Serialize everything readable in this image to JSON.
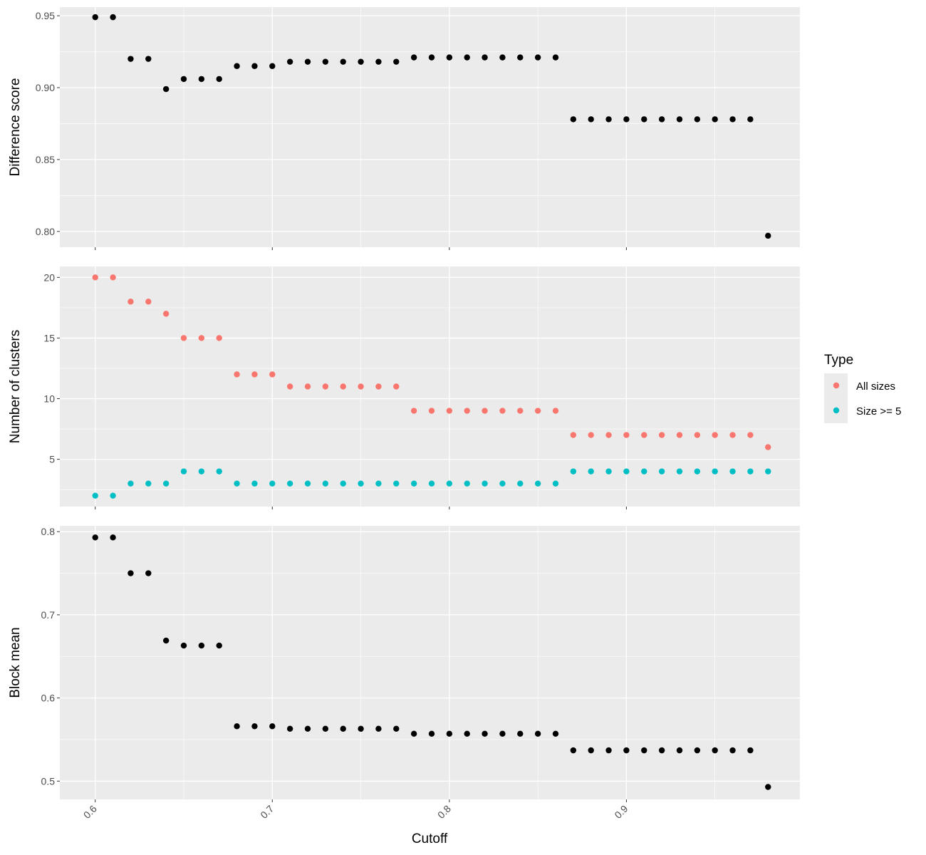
{
  "chart_data": {
    "type": "scatter",
    "xlabel": "Cutoff",
    "x_ticks": [
      0.6,
      0.7,
      0.8,
      0.9
    ],
    "x_tick_labels": [
      "0.6",
      "0.7",
      "0.8",
      "0.9"
    ],
    "xlim": [
      0.58,
      0.998
    ],
    "grid": true,
    "legend_placement": "right",
    "colors": {
      "black": "#000000",
      "all_sizes": "#F8766D",
      "size_ge_5": "#00BFC4",
      "panel_bg": "#EBEBEB",
      "grid": "#FFFFFF"
    },
    "panels": [
      {
        "ylabel": "Difference score",
        "ylim": [
          0.789,
          0.956
        ],
        "y_ticks": [
          0.8,
          0.85,
          0.9,
          0.95
        ],
        "y_tick_labels": [
          "0.80",
          "0.85",
          "0.90",
          "0.95"
        ],
        "series": [
          {
            "color": "#000000",
            "x": [
              0.6,
              0.61,
              0.62,
              0.63,
              0.64,
              0.65,
              0.66,
              0.67,
              0.68,
              0.69,
              0.7,
              0.71,
              0.72,
              0.73,
              0.74,
              0.75,
              0.76,
              0.77,
              0.78,
              0.79,
              0.8,
              0.81,
              0.82,
              0.83,
              0.84,
              0.85,
              0.86,
              0.87,
              0.88,
              0.89,
              0.9,
              0.91,
              0.92,
              0.93,
              0.94,
              0.95,
              0.96,
              0.97,
              0.98
            ],
            "y": [
              0.949,
              0.949,
              0.92,
              0.92,
              0.899,
              0.906,
              0.906,
              0.906,
              0.915,
              0.915,
              0.915,
              0.918,
              0.918,
              0.918,
              0.918,
              0.918,
              0.918,
              0.918,
              0.921,
              0.921,
              0.921,
              0.921,
              0.921,
              0.921,
              0.921,
              0.921,
              0.921,
              0.878,
              0.878,
              0.878,
              0.878,
              0.878,
              0.878,
              0.878,
              0.878,
              0.878,
              0.878,
              0.878,
              0.797
            ]
          }
        ]
      },
      {
        "ylabel": "Number of clusters",
        "ylim": [
          1.1,
          20.9
        ],
        "y_ticks": [
          5,
          10,
          15,
          20
        ],
        "y_tick_labels": [
          "5",
          "10",
          "15",
          "20"
        ],
        "series": [
          {
            "name": "All sizes",
            "color": "#F8766D",
            "x": [
              0.6,
              0.61,
              0.62,
              0.63,
              0.64,
              0.65,
              0.66,
              0.67,
              0.68,
              0.69,
              0.7,
              0.71,
              0.72,
              0.73,
              0.74,
              0.75,
              0.76,
              0.77,
              0.78,
              0.79,
              0.8,
              0.81,
              0.82,
              0.83,
              0.84,
              0.85,
              0.86,
              0.87,
              0.88,
              0.89,
              0.9,
              0.91,
              0.92,
              0.93,
              0.94,
              0.95,
              0.96,
              0.97,
              0.98
            ],
            "y": [
              20,
              20,
              18,
              18,
              17,
              15,
              15,
              15,
              12,
              12,
              12,
              11,
              11,
              11,
              11,
              11,
              11,
              11,
              9,
              9,
              9,
              9,
              9,
              9,
              9,
              9,
              9,
              7,
              7,
              7,
              7,
              7,
              7,
              7,
              7,
              7,
              7,
              7,
              6
            ]
          },
          {
            "name": "Size >= 5",
            "color": "#00BFC4",
            "x": [
              0.6,
              0.61,
              0.62,
              0.63,
              0.64,
              0.65,
              0.66,
              0.67,
              0.68,
              0.69,
              0.7,
              0.71,
              0.72,
              0.73,
              0.74,
              0.75,
              0.76,
              0.77,
              0.78,
              0.79,
              0.8,
              0.81,
              0.82,
              0.83,
              0.84,
              0.85,
              0.86,
              0.87,
              0.88,
              0.89,
              0.9,
              0.91,
              0.92,
              0.93,
              0.94,
              0.95,
              0.96,
              0.97,
              0.98
            ],
            "y": [
              2,
              2,
              3,
              3,
              3,
              4,
              4,
              4,
              3,
              3,
              3,
              3,
              3,
              3,
              3,
              3,
              3,
              3,
              3,
              3,
              3,
              3,
              3,
              3,
              3,
              3,
              3,
              4,
              4,
              4,
              4,
              4,
              4,
              4,
              4,
              4,
              4,
              4,
              4
            ]
          }
        ]
      },
      {
        "ylabel": "Block mean",
        "ylim": [
          0.478,
          0.807
        ],
        "y_ticks": [
          0.5,
          0.6,
          0.7,
          0.8
        ],
        "y_tick_labels": [
          "0.5",
          "0.6",
          "0.7",
          "0.8"
        ],
        "series": [
          {
            "color": "#000000",
            "x": [
              0.6,
              0.61,
              0.62,
              0.63,
              0.64,
              0.65,
              0.66,
              0.67,
              0.68,
              0.69,
              0.7,
              0.71,
              0.72,
              0.73,
              0.74,
              0.75,
              0.76,
              0.77,
              0.78,
              0.79,
              0.8,
              0.81,
              0.82,
              0.83,
              0.84,
              0.85,
              0.86,
              0.87,
              0.88,
              0.89,
              0.9,
              0.91,
              0.92,
              0.93,
              0.94,
              0.95,
              0.96,
              0.97,
              0.98
            ],
            "y": [
              0.793,
              0.793,
              0.75,
              0.75,
              0.669,
              0.663,
              0.663,
              0.663,
              0.566,
              0.566,
              0.566,
              0.563,
              0.563,
              0.563,
              0.563,
              0.563,
              0.563,
              0.563,
              0.557,
              0.557,
              0.557,
              0.557,
              0.557,
              0.557,
              0.557,
              0.557,
              0.557,
              0.537,
              0.537,
              0.537,
              0.537,
              0.537,
              0.537,
              0.537,
              0.537,
              0.537,
              0.537,
              0.537,
              0.493
            ]
          }
        ]
      }
    ],
    "legend": {
      "title": "Type",
      "items": [
        {
          "label": "All sizes",
          "color": "#F8766D"
        },
        {
          "label": "Size >= 5",
          "color": "#00BFC4"
        }
      ]
    }
  }
}
